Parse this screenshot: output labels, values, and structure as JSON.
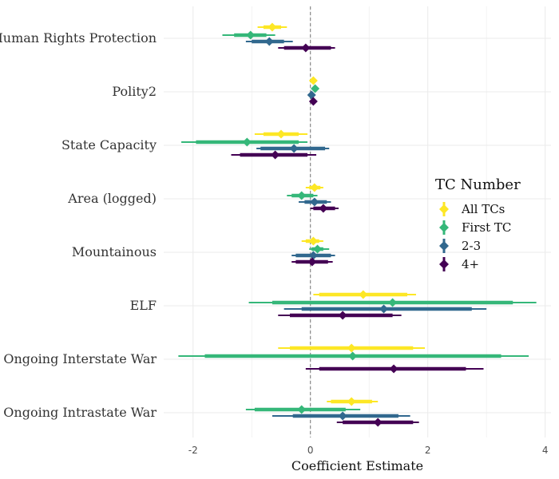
{
  "chart_data": {
    "type": "coefficient_plot",
    "title": "",
    "xlabel": "Coefficient Estimate",
    "ylabel": "",
    "xlim": [
      -2.5,
      4.1
    ],
    "xticks": [
      -2,
      0,
      2,
      4
    ],
    "reference_line": 0,
    "grid": true,
    "legend": {
      "title": "TC Number",
      "position": "right"
    },
    "categories": [
      "Human Rights Protection",
      "Polity2",
      "State Capacity",
      "Area (logged)",
      "Mountainous",
      "ELF",
      "Ongoing Interstate War",
      "Ongoing Intrastate War"
    ],
    "series": [
      {
        "name": "All TCs",
        "color": "#FDE725",
        "points": [
          {
            "est": -0.65,
            "ci90": [
              -0.8,
              -0.5
            ],
            "ci95": [
              -0.9,
              -0.4
            ]
          },
          {
            "est": 0.05,
            "ci90": [
              0.02,
              0.08
            ],
            "ci95": [
              0.0,
              0.1
            ]
          },
          {
            "est": -0.5,
            "ci90": [
              -0.8,
              -0.2
            ],
            "ci95": [
              -0.95,
              -0.05
            ]
          },
          {
            "est": 0.07,
            "ci90": [
              -0.02,
              0.17
            ],
            "ci95": [
              -0.08,
              0.22
            ]
          },
          {
            "est": 0.05,
            "ci90": [
              -0.08,
              0.15
            ],
            "ci95": [
              -0.15,
              0.22
            ]
          },
          {
            "est": 0.9,
            "ci90": [
              0.15,
              1.65
            ],
            "ci95": [
              0.05,
              1.8
            ]
          },
          {
            "est": 0.7,
            "ci90": [
              -0.35,
              1.75
            ],
            "ci95": [
              -0.55,
              1.95
            ]
          },
          {
            "est": 0.7,
            "ci90": [
              0.35,
              1.05
            ],
            "ci95": [
              0.28,
              1.15
            ]
          }
        ]
      },
      {
        "name": "First TC",
        "color": "#35B779",
        "points": [
          {
            "est": -1.02,
            "ci90": [
              -1.3,
              -0.75
            ],
            "ci95": [
              -1.5,
              -0.6
            ]
          },
          {
            "est": 0.08,
            "ci90": [
              0.04,
              0.12
            ],
            "ci95": [
              0.02,
              0.14
            ]
          },
          {
            "est": -1.08,
            "ci90": [
              -1.95,
              -0.2
            ],
            "ci95": [
              -2.2,
              -0.05
            ]
          },
          {
            "est": -0.15,
            "ci90": [
              -0.32,
              0.05
            ],
            "ci95": [
              -0.4,
              0.12
            ]
          },
          {
            "est": 0.12,
            "ci90": [
              0.02,
              0.22
            ],
            "ci95": [
              -0.02,
              0.32
            ]
          },
          {
            "est": 1.4,
            "ci90": [
              -0.65,
              3.45
            ],
            "ci95": [
              -1.05,
              3.85
            ]
          },
          {
            "est": 0.72,
            "ci90": [
              -1.8,
              3.25
            ],
            "ci95": [
              -2.25,
              3.72
            ]
          },
          {
            "est": -0.15,
            "ci90": [
              -0.95,
              0.6
            ],
            "ci95": [
              -1.1,
              0.85
            ]
          }
        ]
      },
      {
        "name": "2-3",
        "color": "#31688E",
        "points": [
          {
            "est": -0.7,
            "ci90": [
              -1.0,
              -0.45
            ],
            "ci95": [
              -1.1,
              -0.3
            ]
          },
          {
            "est": 0.02,
            "ci90": [
              -0.01,
              0.05
            ],
            "ci95": [
              -0.03,
              0.07
            ]
          },
          {
            "est": -0.28,
            "ci90": [
              -0.85,
              0.25
            ],
            "ci95": [
              -0.92,
              0.32
            ]
          },
          {
            "est": 0.07,
            "ci90": [
              -0.1,
              0.28
            ],
            "ci95": [
              -0.2,
              0.35
            ]
          },
          {
            "est": 0.05,
            "ci90": [
              -0.25,
              0.35
            ],
            "ci95": [
              -0.32,
              0.42
            ]
          },
          {
            "est": 1.25,
            "ci90": [
              -0.15,
              2.75
            ],
            "ci95": [
              -0.45,
              3.0
            ]
          },
          {
            "est": null,
            "ci90": null,
            "ci95": null
          },
          {
            "est": 0.55,
            "ci90": [
              -0.3,
              1.5
            ],
            "ci95": [
              -0.65,
              1.7
            ]
          }
        ]
      },
      {
        "name": "4+",
        "color": "#440154",
        "points": [
          {
            "est": -0.08,
            "ci90": [
              -0.45,
              0.35
            ],
            "ci95": [
              -0.55,
              0.42
            ]
          },
          {
            "est": 0.05,
            "ci90": [
              0.02,
              0.08
            ],
            "ci95": [
              0.0,
              0.1
            ]
          },
          {
            "est": -0.6,
            "ci90": [
              -1.2,
              -0.05
            ],
            "ci95": [
              -1.35,
              0.1
            ]
          },
          {
            "est": 0.22,
            "ci90": [
              0.05,
              0.42
            ],
            "ci95": [
              0.0,
              0.48
            ]
          },
          {
            "est": 0.03,
            "ci90": [
              -0.25,
              0.3
            ],
            "ci95": [
              -0.32,
              0.38
            ]
          },
          {
            "est": 0.55,
            "ci90": [
              -0.35,
              1.4
            ],
            "ci95": [
              -0.55,
              1.55
            ]
          },
          {
            "est": 1.42,
            "ci90": [
              0.15,
              2.65
            ],
            "ci95": [
              -0.08,
              2.95
            ]
          },
          {
            "est": 1.15,
            "ci90": [
              0.55,
              1.75
            ],
            "ci95": [
              0.45,
              1.85
            ]
          }
        ]
      }
    ]
  }
}
